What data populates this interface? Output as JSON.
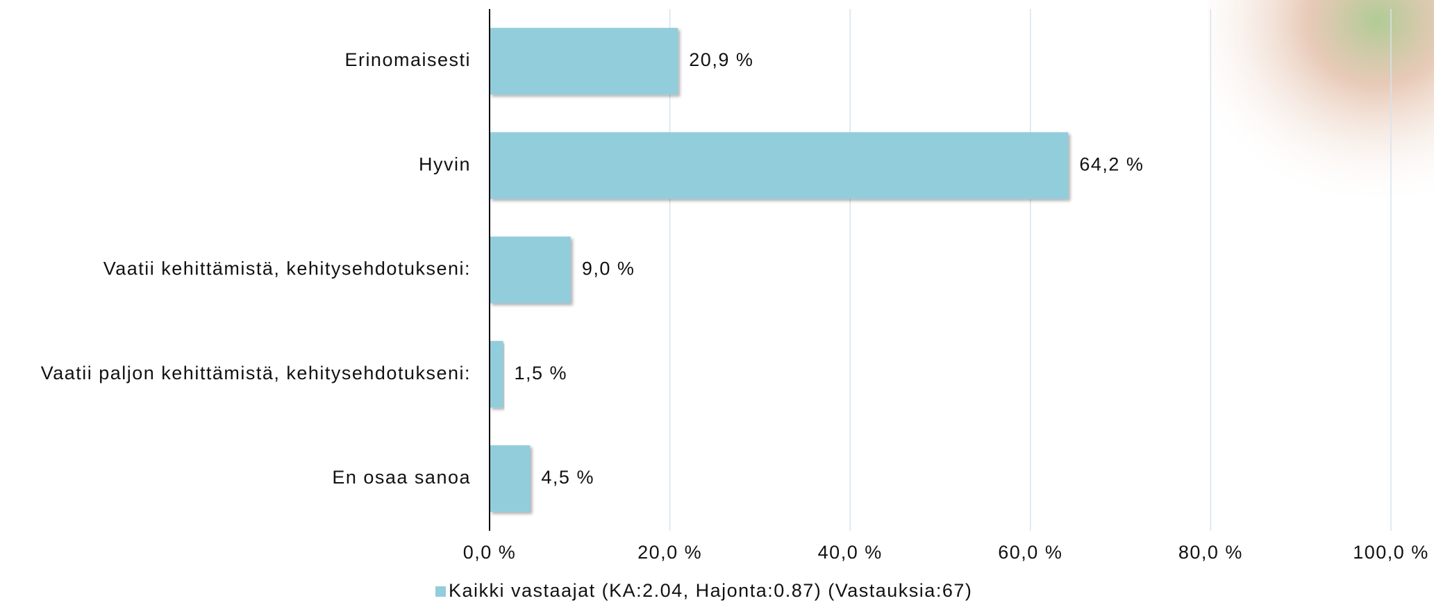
{
  "chart_data": {
    "type": "bar",
    "orientation": "horizontal",
    "categories": [
      "Erinomaisesti",
      "Hyvin",
      "Vaatii kehittämistä, kehitysehdotukseni:",
      "Vaatii paljon kehittämistä, kehitysehdotukseni:",
      "En osaa sanoa"
    ],
    "series": [
      {
        "name": "Kaikki vastaajat (KA:2.04, Hajonta:0.87) (Vastauksia:67)",
        "color": "#92cddc",
        "values": [
          20.9,
          64.2,
          9.0,
          1.5,
          4.5
        ],
        "value_labels": [
          "20,9 %",
          "64,2 %",
          "9,0 %",
          "1,5 %",
          "4,5 %"
        ]
      }
    ],
    "xlim": [
      0,
      100
    ],
    "xticks": [
      {
        "value": 0,
        "label": "0,0 %"
      },
      {
        "value": 20,
        "label": "20,0 %"
      },
      {
        "value": 40,
        "label": "40,0 %"
      },
      {
        "value": 60,
        "label": "60,0 %"
      },
      {
        "value": 80,
        "label": "80,0 %"
      },
      {
        "value": 100,
        "label": "100,0 %"
      }
    ],
    "grid": true,
    "legend": "bottom"
  }
}
